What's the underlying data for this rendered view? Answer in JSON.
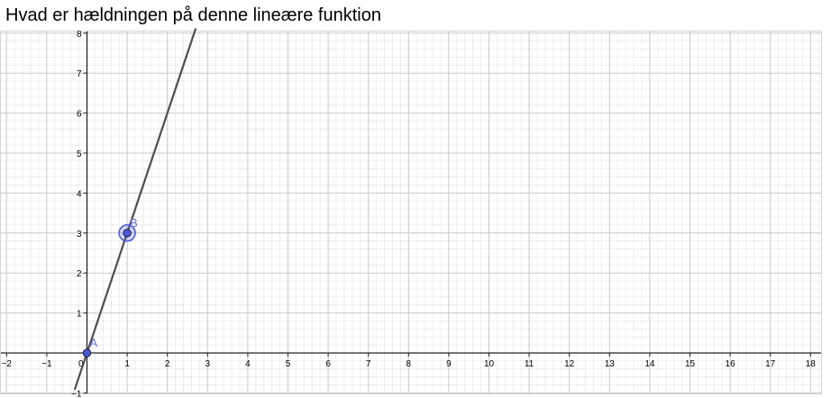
{
  "question": {
    "text": "Hvad er hældningen på denne lineære funktion"
  },
  "colors": {
    "line": "#4d4d4d",
    "point_fill": "#4b5bd6",
    "point_label": "#6a72e0",
    "grid_major": "#c9c9c9",
    "grid_minor": "#ececec",
    "axis": "#252525"
  },
  "chart_data": {
    "type": "line",
    "title": "",
    "xlabel": "",
    "ylabel": "",
    "xlim": [
      -2,
      18.3
    ],
    "ylim": [
      -1,
      8
    ],
    "grid": "on",
    "x_ticks": [
      -2,
      -1,
      0,
      1,
      2,
      3,
      4,
      5,
      6,
      7,
      8,
      9,
      10,
      11,
      12,
      13,
      14,
      15,
      16,
      17,
      18
    ],
    "y_ticks": [
      -1,
      1,
      2,
      3,
      4,
      5,
      6,
      7,
      8
    ],
    "origin_label": "0",
    "series": [
      {
        "type": "line",
        "slope": 3,
        "intercept": 0,
        "points": [
          [
            -0.3,
            -0.9
          ],
          [
            2.7,
            8.1
          ]
        ]
      }
    ],
    "points": [
      {
        "label": "A",
        "x": 0,
        "y": 0,
        "selected": false
      },
      {
        "label": "B",
        "x": 1,
        "y": 3,
        "selected": true
      }
    ]
  }
}
